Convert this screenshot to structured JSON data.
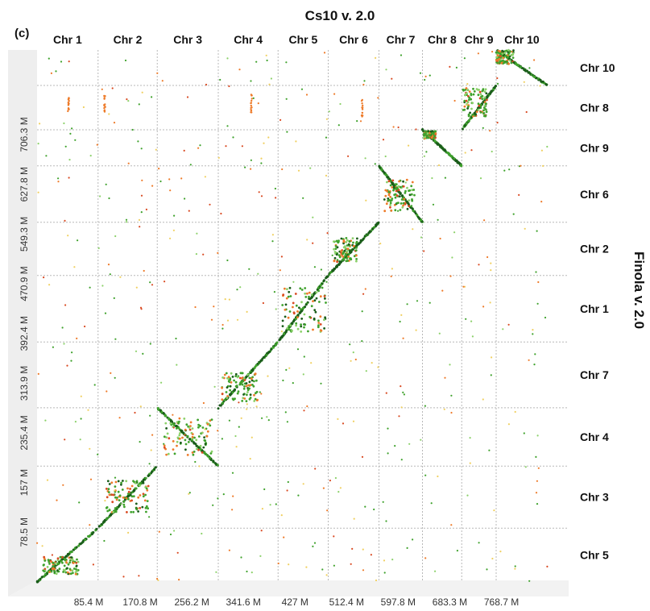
{
  "chart_data": {
    "type": "scatter",
    "panel_label": "(c)",
    "title": "Cs10 v. 2.0",
    "ylabel": "Finola v. 2.0",
    "xlim": [
      0,
      880
    ],
    "ylim": [
      0,
      840
    ],
    "x_ticks": [
      {
        "value": 85.4,
        "label": "85.4 M"
      },
      {
        "value": 170.8,
        "label": "170.8 M"
      },
      {
        "value": 256.2,
        "label": "256.2 M"
      },
      {
        "value": 341.6,
        "label": "341.6 M"
      },
      {
        "value": 427,
        "label": "427 M"
      },
      {
        "value": 512.4,
        "label": "512.4 M"
      },
      {
        "value": 597.8,
        "label": "597.8 M"
      },
      {
        "value": 683.3,
        "label": "683.3 M"
      },
      {
        "value": 768.7,
        "label": "768.7 M"
      }
    ],
    "y_ticks": [
      {
        "value": 78.5,
        "label": "78.5 M"
      },
      {
        "value": 157,
        "label": "157 M"
      },
      {
        "value": 235.4,
        "label": "235.4 M"
      },
      {
        "value": 313.9,
        "label": "313.9 M"
      },
      {
        "value": 392.4,
        "label": "392.4 M"
      },
      {
        "value": 470.9,
        "label": "470.9 M"
      },
      {
        "value": 549.3,
        "label": "549.3 M"
      },
      {
        "value": 627.8,
        "label": "627.8 M"
      },
      {
        "value": 706.3,
        "label": "706.3 M"
      }
    ],
    "x_chromosomes": [
      {
        "name": "Chr 1",
        "start": 0,
        "end": 101
      },
      {
        "name": "Chr 2",
        "start": 101,
        "end": 199
      },
      {
        "name": "Chr 3",
        "start": 199,
        "end": 300
      },
      {
        "name": "Chr 4",
        "start": 300,
        "end": 399
      },
      {
        "name": "Chr 5",
        "start": 399,
        "end": 482
      },
      {
        "name": "Chr 6",
        "start": 482,
        "end": 566
      },
      {
        "name": "Chr 7",
        "start": 566,
        "end": 638
      },
      {
        "name": "Chr 8",
        "start": 638,
        "end": 703
      },
      {
        "name": "Chr 9",
        "start": 703,
        "end": 760
      },
      {
        "name": "Chr 10",
        "start": 760,
        "end": 845
      }
    ],
    "y_chromosomes": [
      {
        "name": "Chr 5",
        "start": 0,
        "end": 85
      },
      {
        "name": "Chr 3",
        "start": 85,
        "end": 183
      },
      {
        "name": "Chr 4",
        "start": 183,
        "end": 275
      },
      {
        "name": "Chr 7",
        "start": 275,
        "end": 379
      },
      {
        "name": "Chr 1",
        "start": 379,
        "end": 484
      },
      {
        "name": "Chr 2",
        "start": 484,
        "end": 568
      },
      {
        "name": "Chr 6",
        "start": 568,
        "end": 657
      },
      {
        "name": "Chr 9",
        "start": 657,
        "end": 714
      },
      {
        "name": "Chr 8",
        "start": 714,
        "end": 784
      },
      {
        "name": "Chr 10",
        "start": 784,
        "end": 840
      }
    ],
    "synteny_blocks": [
      {
        "pair": "Chr 1 / Chr 5",
        "x": [
          0,
          101
        ],
        "y": [
          0,
          85
        ],
        "orientation": "forward",
        "cluster": [
          10,
          70,
          12,
          40
        ]
      },
      {
        "pair": "Chr 2 / Chr 3",
        "x": [
          101,
          199
        ],
        "y": [
          85,
          183
        ],
        "orientation": "forward",
        "cluster": [
          115,
          185,
          110,
          160
        ]
      },
      {
        "pair": "Chr 3 / Chr 4",
        "x": [
          199,
          300
        ],
        "y": [
          183,
          275
        ],
        "orientation": "reverse",
        "cluster": [
          210,
          290,
          200,
          260
        ]
      },
      {
        "pair": "Chr 4 / Chr 7",
        "x": [
          300,
          399
        ],
        "y": [
          275,
          379
        ],
        "orientation": "forward",
        "cluster": [
          305,
          365,
          285,
          330
        ]
      },
      {
        "pair": "Chr 5 / Chr 1",
        "x": [
          399,
          482
        ],
        "y": [
          379,
          484
        ],
        "orientation": "forward",
        "cluster": [
          405,
          478,
          395,
          465
        ]
      },
      {
        "pair": "Chr 6 / Chr 2",
        "x": [
          482,
          566
        ],
        "y": [
          484,
          568
        ],
        "orientation": "forward",
        "cluster": [
          490,
          530,
          505,
          545
        ]
      },
      {
        "pair": "Chr 7 / Chr 6",
        "x": [
          566,
          638
        ],
        "y": [
          568,
          657
        ],
        "orientation": "reverse",
        "cluster": [
          575,
          625,
          585,
          635
        ]
      },
      {
        "pair": "Chr 8 / Chr 9",
        "x": [
          638,
          703
        ],
        "y": [
          657,
          714
        ],
        "orientation": "reverse",
        "cluster": [
          640,
          660,
          700,
          712
        ]
      },
      {
        "pair": "Chr 9 / Chr 8",
        "x": [
          703,
          760
        ],
        "y": [
          714,
          784
        ],
        "orientation": "forward",
        "cluster": [
          705,
          745,
          735,
          780
        ]
      },
      {
        "pair": "Chr 10 / Chr 10",
        "x": [
          760,
          845
        ],
        "y": [
          784,
          840
        ],
        "orientation": "reverse",
        "cluster": [
          760,
          790,
          818,
          840
        ]
      }
    ],
    "grid": true,
    "legend": "none",
    "colors": {
      "dark_green": "#1a5c1a",
      "green": "#3fa22c",
      "light_green": "#8cd16a",
      "orange": "#ee7b2a",
      "red": "#d94a22",
      "yellow": "#f0d060",
      "grid": "#b8b8b8",
      "axis_band": "#eeeeee"
    }
  }
}
